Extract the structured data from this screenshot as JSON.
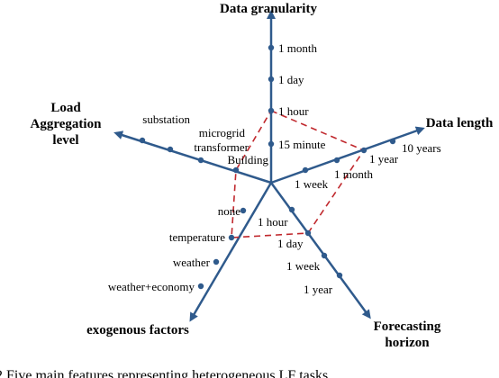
{
  "colors": {
    "axis": "#2f5a8c",
    "polygon": "#c0282d"
  },
  "axes": [
    {
      "title_lines": [
        "Data granularity"
      ],
      "ticks": [
        "15 minute",
        "1 hour",
        "1 day",
        "1 month"
      ]
    },
    {
      "title_lines": [
        "Data length"
      ],
      "ticks": [
        "1 week",
        "1 month",
        "1 year",
        "10 years"
      ]
    },
    {
      "title_lines": [
        "Forecasting",
        "horizon"
      ],
      "ticks": [
        "1 hour",
        "1 day",
        "1 week",
        "1 year"
      ]
    },
    {
      "title_lines": [
        "exogenous factors"
      ],
      "ticks": [
        "none",
        "temperature",
        "weather",
        "weather+economy"
      ]
    },
    {
      "title_lines": [
        "Load",
        "Aggregation",
        "level"
      ],
      "ticks": [
        "Building",
        "transformer",
        "microgrid",
        "substation"
      ]
    }
  ],
  "polygon_ticks": [
    1,
    2,
    1,
    1,
    0
  ],
  "caption": "2     Five main features representing heterogeneous LF tasks"
}
